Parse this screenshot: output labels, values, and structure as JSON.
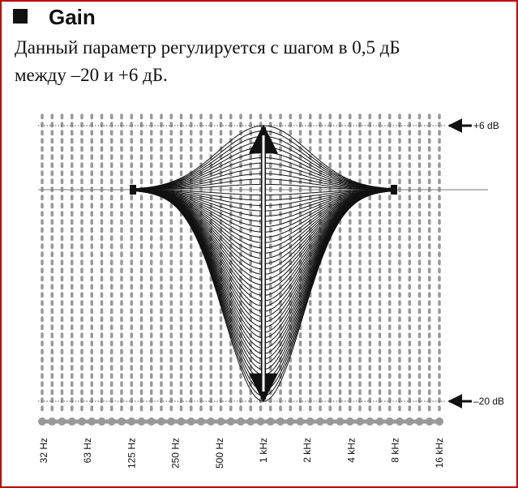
{
  "header": {
    "title": "Gain"
  },
  "body": {
    "lines": [
      "Данный параметр регулируется с шагом в 0,5 дБ",
      "между –20 и +6 дБ."
    ]
  },
  "diagram": {
    "levels": [
      "+6 dB",
      "–20 dB"
    ],
    "frequencies": [
      "32 Hz",
      "63 Hz",
      "125 Hz",
      "250 Hz",
      "500 Hz",
      "1 kHz",
      "2 kHz",
      "4 kHz",
      "8 kHz",
      "16 kHz"
    ]
  }
}
